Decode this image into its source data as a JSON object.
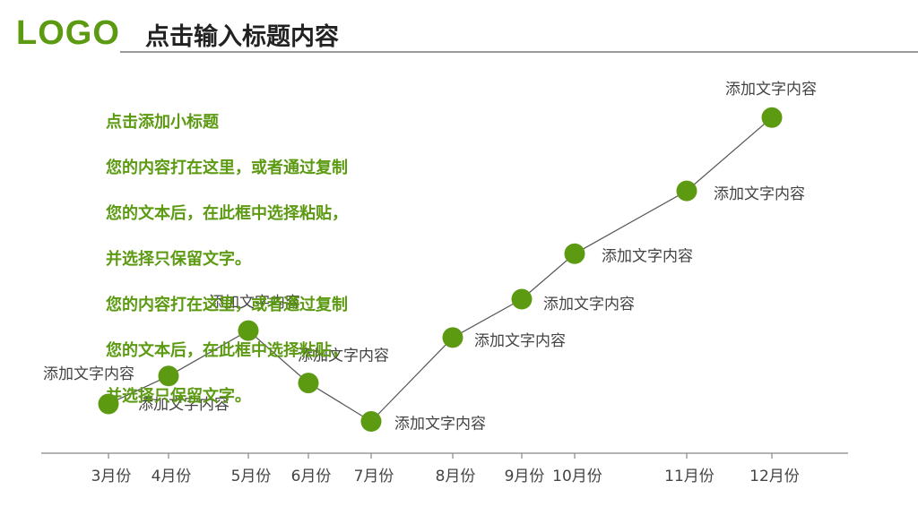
{
  "header": {
    "logo": "LOGO",
    "title": "点击输入标题内容"
  },
  "body": {
    "subtitle": "点击添加小标题",
    "lines": [
      "您的内容打在这里，或者通过复制",
      "您的文本后，在此框中选择粘贴，",
      "并选择只保留文字。",
      "您的内容打在这里，或者通过复制",
      "您的文本后，在此框中选择粘贴，",
      "并选择只保留文字。"
    ]
  },
  "colors": {
    "accent": "#5c9a12",
    "line": "#555555",
    "axis": "#888888",
    "text": "#444444"
  },
  "chart_data": {
    "type": "line",
    "title": "",
    "xlabel": "",
    "ylabel": "",
    "categories": [
      "3月份",
      "4月份",
      "5月份",
      "6月份",
      "7月份",
      "8月份",
      "9月份",
      "10月份",
      "11月份",
      "12月份"
    ],
    "series": [
      {
        "values": [
          10,
          18,
          31,
          16,
          5,
          29,
          40,
          53,
          71,
          92
        ]
      }
    ],
    "ylim": [
      0,
      100
    ],
    "point_labels": [
      "添加文字内容",
      "添加文字内容",
      "添加文字内容",
      "添加文字内容",
      "添加文字内容",
      "添加文字内容",
      "添加文字内容",
      "添加文字内容",
      "添加文字内容",
      "添加文字内容"
    ],
    "grid": false
  }
}
